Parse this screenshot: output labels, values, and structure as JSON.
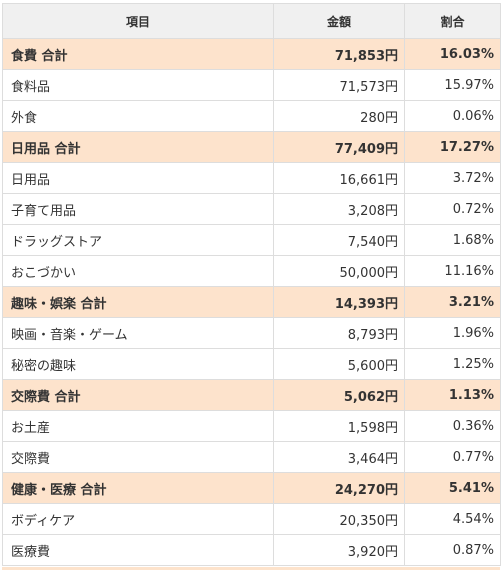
{
  "table": {
    "headers": [
      "項目",
      "金額",
      "割合"
    ],
    "rows": [
      {
        "type": "total",
        "label": "食費 合計",
        "amount": "71,853円",
        "ratio": "16.03%"
      },
      {
        "type": "item",
        "label": "食料品",
        "amount": "71,573円",
        "ratio": "15.97%"
      },
      {
        "type": "item",
        "label": "外食",
        "amount": "280円",
        "ratio": "0.06%"
      },
      {
        "type": "total",
        "label": "日用品 合計",
        "amount": "77,409円",
        "ratio": "17.27%"
      },
      {
        "type": "item",
        "label": "日用品",
        "amount": "16,661円",
        "ratio": "3.72%"
      },
      {
        "type": "item",
        "label": "子育て用品",
        "amount": "3,208円",
        "ratio": "0.72%"
      },
      {
        "type": "item",
        "label": "ドラッグストア",
        "amount": "7,540円",
        "ratio": "1.68%"
      },
      {
        "type": "item",
        "label": "おこづかい",
        "amount": "50,000円",
        "ratio": "11.16%"
      },
      {
        "type": "total",
        "label": "趣味・娯楽 合計",
        "amount": "14,393円",
        "ratio": "3.21%"
      },
      {
        "type": "item",
        "label": "映画・音楽・ゲーム",
        "amount": "8,793円",
        "ratio": "1.96%"
      },
      {
        "type": "item",
        "label": "秘密の趣味",
        "amount": "5,600円",
        "ratio": "1.25%"
      },
      {
        "type": "total",
        "label": "交際費 合計",
        "amount": "5,062円",
        "ratio": "1.13%"
      },
      {
        "type": "item",
        "label": "お土産",
        "amount": "1,598円",
        "ratio": "0.36%"
      },
      {
        "type": "item",
        "label": "交際費",
        "amount": "3,464円",
        "ratio": "0.77%"
      },
      {
        "type": "total",
        "label": "健康・医療 合計",
        "amount": "24,270円",
        "ratio": "5.41%"
      },
      {
        "type": "item",
        "label": "ボディケア",
        "amount": "20,350円",
        "ratio": "4.54%"
      },
      {
        "type": "item",
        "label": "医療費",
        "amount": "3,920円",
        "ratio": "0.87%"
      }
    ]
  },
  "colors": {
    "header_bg": "#f0f0f0",
    "total_row_bg": "#fde3cc",
    "border": "#dddddd",
    "text": "#333333"
  }
}
